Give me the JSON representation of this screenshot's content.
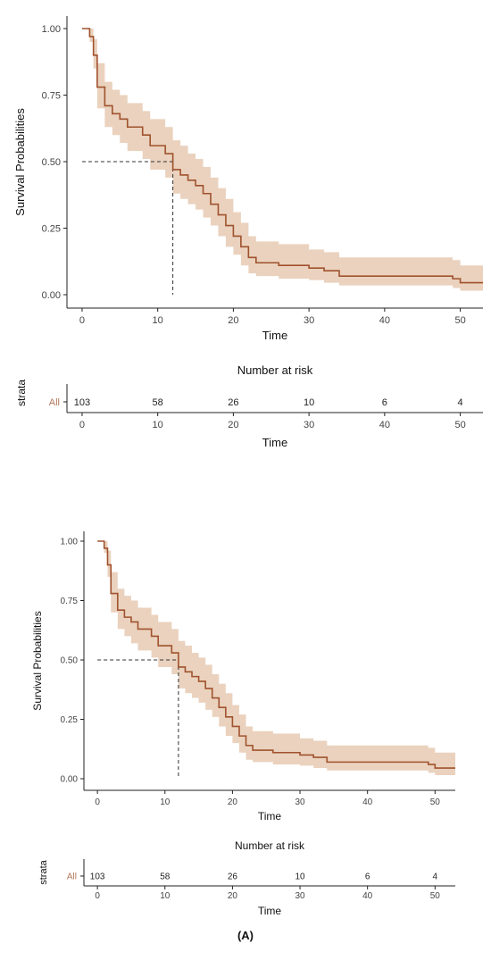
{
  "colors": {
    "curve": "#a0522d",
    "band": "#e3c3a8",
    "axis": "#222222",
    "tick_text": "#444444",
    "strata_label": "#b2775a"
  },
  "caption": "(A)",
  "chart_data": [
    {
      "type": "line",
      "subtype": "kaplan-meier",
      "xlabel": "Time",
      "ylabel": "Survival Probabilities",
      "xlim": [
        -2,
        53
      ],
      "ylim": [
        0,
        1
      ],
      "x_ticks": [
        0,
        10,
        20,
        30,
        40,
        50
      ],
      "y_ticks": [
        0,
        0.25,
        0.5,
        0.75,
        1
      ],
      "y_tick_labels": [
        "0.00",
        "0.25",
        "0.50",
        "0.75",
        "1.00"
      ],
      "median_survival": {
        "time": 12,
        "probability": 0.5
      },
      "series": [
        {
          "steps": [
            [
              0,
              1.0
            ],
            [
              1,
              0.97
            ],
            [
              1.5,
              0.9
            ],
            [
              2,
              0.78
            ],
            [
              3,
              0.71
            ],
            [
              4,
              0.68
            ],
            [
              5,
              0.66
            ],
            [
              6,
              0.63
            ],
            [
              8,
              0.6
            ],
            [
              9,
              0.56
            ],
            [
              11,
              0.53
            ],
            [
              12,
              0.47
            ],
            [
              13,
              0.45
            ],
            [
              14,
              0.43
            ],
            [
              15,
              0.41
            ],
            [
              16,
              0.38
            ],
            [
              17,
              0.34
            ],
            [
              18,
              0.3
            ],
            [
              19,
              0.26
            ],
            [
              20,
              0.22
            ],
            [
              21,
              0.18
            ],
            [
              22,
              0.14
            ],
            [
              23,
              0.12
            ],
            [
              26,
              0.11
            ],
            [
              30,
              0.1
            ],
            [
              32,
              0.09
            ],
            [
              34,
              0.07
            ],
            [
              49,
              0.06
            ],
            [
              50,
              0.045
            ],
            [
              53,
              0.045
            ]
          ],
          "lower": [
            [
              0,
              1.0
            ],
            [
              1,
              0.95
            ],
            [
              1.5,
              0.85
            ],
            [
              2,
              0.7
            ],
            [
              3,
              0.63
            ],
            [
              4,
              0.6
            ],
            [
              5,
              0.57
            ],
            [
              6,
              0.54
            ],
            [
              8,
              0.51
            ],
            [
              9,
              0.47
            ],
            [
              11,
              0.44
            ],
            [
              12,
              0.38
            ],
            [
              13,
              0.36
            ],
            [
              14,
              0.34
            ],
            [
              15,
              0.32
            ],
            [
              16,
              0.29
            ],
            [
              17,
              0.26
            ],
            [
              18,
              0.22
            ],
            [
              19,
              0.18
            ],
            [
              20,
              0.15
            ],
            [
              21,
              0.11
            ],
            [
              22,
              0.08
            ],
            [
              23,
              0.07
            ],
            [
              26,
              0.06
            ],
            [
              30,
              0.055
            ],
            [
              32,
              0.045
            ],
            [
              34,
              0.035
            ],
            [
              49,
              0.025
            ],
            [
              50,
              0.015
            ],
            [
              53,
              0.015
            ]
          ],
          "upper": [
            [
              0,
              1.0
            ],
            [
              1,
              1.0
            ],
            [
              1.5,
              0.96
            ],
            [
              2,
              0.87
            ],
            [
              3,
              0.8
            ],
            [
              4,
              0.77
            ],
            [
              5,
              0.75
            ],
            [
              6,
              0.72
            ],
            [
              8,
              0.69
            ],
            [
              9,
              0.66
            ],
            [
              11,
              0.63
            ],
            [
              12,
              0.58
            ],
            [
              13,
              0.56
            ],
            [
              14,
              0.53
            ],
            [
              15,
              0.51
            ],
            [
              16,
              0.48
            ],
            [
              17,
              0.44
            ],
            [
              18,
              0.4
            ],
            [
              19,
              0.36
            ],
            [
              20,
              0.31
            ],
            [
              21,
              0.27
            ],
            [
              22,
              0.22
            ],
            [
              23,
              0.2
            ],
            [
              26,
              0.19
            ],
            [
              30,
              0.17
            ],
            [
              32,
              0.16
            ],
            [
              34,
              0.14
            ],
            [
              49,
              0.13
            ],
            [
              50,
              0.11
            ],
            [
              53,
              0.11
            ]
          ]
        }
      ],
      "risk_table": {
        "title": "Number at risk",
        "xlabel": "Time",
        "y_axis_label": "strata",
        "strata": "All",
        "times": [
          0,
          10,
          20,
          30,
          40,
          50
        ],
        "counts": [
          103,
          58,
          26,
          10,
          6,
          4
        ]
      }
    },
    {
      "type": "line",
      "subtype": "kaplan-meier",
      "xlabel": "Time",
      "ylabel": "Survival Probabilities",
      "xlim": [
        -2,
        53
      ],
      "ylim": [
        0,
        1
      ],
      "x_ticks": [
        0,
        10,
        20,
        30,
        40,
        50
      ],
      "y_ticks": [
        0,
        0.25,
        0.5,
        0.75,
        1
      ],
      "y_tick_labels": [
        "0.00",
        "0.25",
        "0.50",
        "0.75",
        "1.00"
      ],
      "median_survival": {
        "time": 12,
        "probability": 0.5
      },
      "series": [
        {
          "steps": [
            [
              0,
              1.0
            ],
            [
              1,
              0.97
            ],
            [
              1.5,
              0.9
            ],
            [
              2,
              0.78
            ],
            [
              3,
              0.71
            ],
            [
              4,
              0.68
            ],
            [
              5,
              0.66
            ],
            [
              6,
              0.63
            ],
            [
              8,
              0.6
            ],
            [
              9,
              0.56
            ],
            [
              11,
              0.53
            ],
            [
              12,
              0.47
            ],
            [
              13,
              0.45
            ],
            [
              14,
              0.43
            ],
            [
              15,
              0.41
            ],
            [
              16,
              0.38
            ],
            [
              17,
              0.34
            ],
            [
              18,
              0.3
            ],
            [
              19,
              0.26
            ],
            [
              20,
              0.22
            ],
            [
              21,
              0.18
            ],
            [
              22,
              0.14
            ],
            [
              23,
              0.12
            ],
            [
              26,
              0.11
            ],
            [
              30,
              0.1
            ],
            [
              32,
              0.09
            ],
            [
              34,
              0.07
            ],
            [
              49,
              0.06
            ],
            [
              50,
              0.045
            ],
            [
              53,
              0.045
            ]
          ],
          "lower": [
            [
              0,
              1.0
            ],
            [
              1,
              0.95
            ],
            [
              1.5,
              0.85
            ],
            [
              2,
              0.7
            ],
            [
              3,
              0.63
            ],
            [
              4,
              0.6
            ],
            [
              5,
              0.57
            ],
            [
              6,
              0.54
            ],
            [
              8,
              0.51
            ],
            [
              9,
              0.47
            ],
            [
              11,
              0.44
            ],
            [
              12,
              0.38
            ],
            [
              13,
              0.36
            ],
            [
              14,
              0.34
            ],
            [
              15,
              0.32
            ],
            [
              16,
              0.29
            ],
            [
              17,
              0.26
            ],
            [
              18,
              0.22
            ],
            [
              19,
              0.18
            ],
            [
              20,
              0.15
            ],
            [
              21,
              0.11
            ],
            [
              22,
              0.08
            ],
            [
              23,
              0.07
            ],
            [
              26,
              0.06
            ],
            [
              30,
              0.055
            ],
            [
              32,
              0.045
            ],
            [
              34,
              0.035
            ],
            [
              49,
              0.025
            ],
            [
              50,
              0.015
            ],
            [
              53,
              0.015
            ]
          ],
          "upper": [
            [
              0,
              1.0
            ],
            [
              1,
              1.0
            ],
            [
              1.5,
              0.96
            ],
            [
              2,
              0.87
            ],
            [
              3,
              0.8
            ],
            [
              4,
              0.77
            ],
            [
              5,
              0.75
            ],
            [
              6,
              0.72
            ],
            [
              8,
              0.69
            ],
            [
              9,
              0.66
            ],
            [
              11,
              0.63
            ],
            [
              12,
              0.58
            ],
            [
              13,
              0.56
            ],
            [
              14,
              0.53
            ],
            [
              15,
              0.51
            ],
            [
              16,
              0.48
            ],
            [
              17,
              0.44
            ],
            [
              18,
              0.4
            ],
            [
              19,
              0.36
            ],
            [
              20,
              0.31
            ],
            [
              21,
              0.27
            ],
            [
              22,
              0.22
            ],
            [
              23,
              0.2
            ],
            [
              26,
              0.19
            ],
            [
              30,
              0.17
            ],
            [
              32,
              0.16
            ],
            [
              34,
              0.14
            ],
            [
              49,
              0.13
            ],
            [
              50,
              0.11
            ],
            [
              53,
              0.11
            ]
          ]
        }
      ],
      "risk_table": {
        "title": "Number at risk",
        "xlabel": "Time",
        "y_axis_label": "strata",
        "strata": "All",
        "times": [
          0,
          10,
          20,
          30,
          40,
          50
        ],
        "counts": [
          103,
          58,
          26,
          10,
          6,
          4
        ]
      }
    }
  ]
}
